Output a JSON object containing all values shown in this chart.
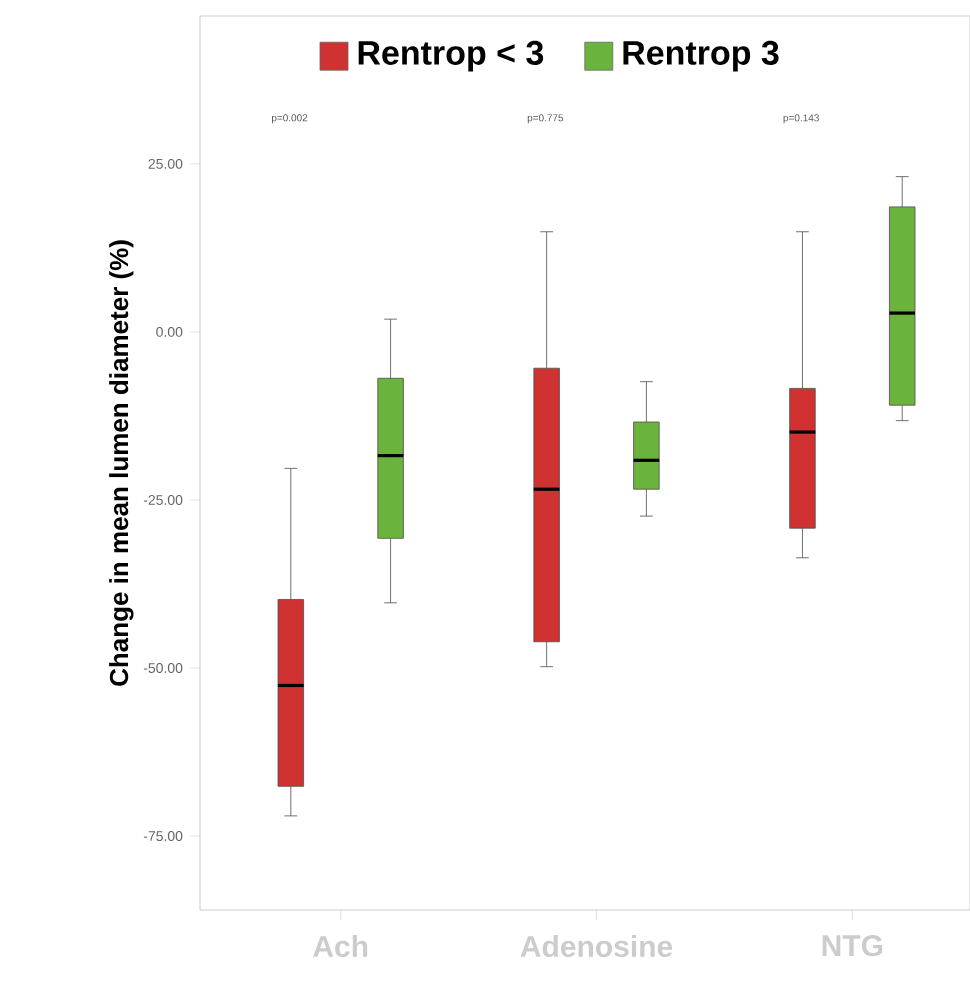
{
  "chart_data": {
    "type": "box",
    "ylabel": "Change in mean lumen diameter (%)",
    "categories": [
      "Ach",
      "Adenosine",
      "NTG"
    ],
    "ylim": [
      -86,
      47
    ],
    "yticks": [
      {
        "value": 25,
        "label": "25.00"
      },
      {
        "value": 0,
        "label": "0.00"
      },
      {
        "value": -25,
        "label": "-25.00"
      },
      {
        "value": -50,
        "label": "-50.00"
      },
      {
        "value": -75,
        "label": "-75.00"
      }
    ],
    "legend": "top",
    "series": [
      {
        "name": "Rentrop < 3",
        "color": "#d03232",
        "boxes": [
          {
            "low": -72,
            "q1": -67.6,
            "median": -52.6,
            "q3": -39.8,
            "high": -20.3
          },
          {
            "low": -49.8,
            "q1": -46.1,
            "median": -23.4,
            "q3": -5.4,
            "high": 14.9
          },
          {
            "low": -33.6,
            "q1": -29.2,
            "median": -14.9,
            "q3": -8.4,
            "high": 14.9
          }
        ]
      },
      {
        "name": "Rentrop 3",
        "color": "#6ab33c",
        "boxes": [
          {
            "low": -40.3,
            "q1": -30.7,
            "median": -18.4,
            "q3": -6.9,
            "high": 1.9
          },
          {
            "low": -27.4,
            "q1": -23.4,
            "median": -19.1,
            "q3": -13.4,
            "high": -7.4
          },
          {
            "low": -13.2,
            "q1": -10.9,
            "median": 2.8,
            "q3": 18.6,
            "high": 23.1
          }
        ]
      }
    ],
    "annotations": [
      "p=0.002",
      "p=0.775",
      "p=0.143"
    ]
  }
}
